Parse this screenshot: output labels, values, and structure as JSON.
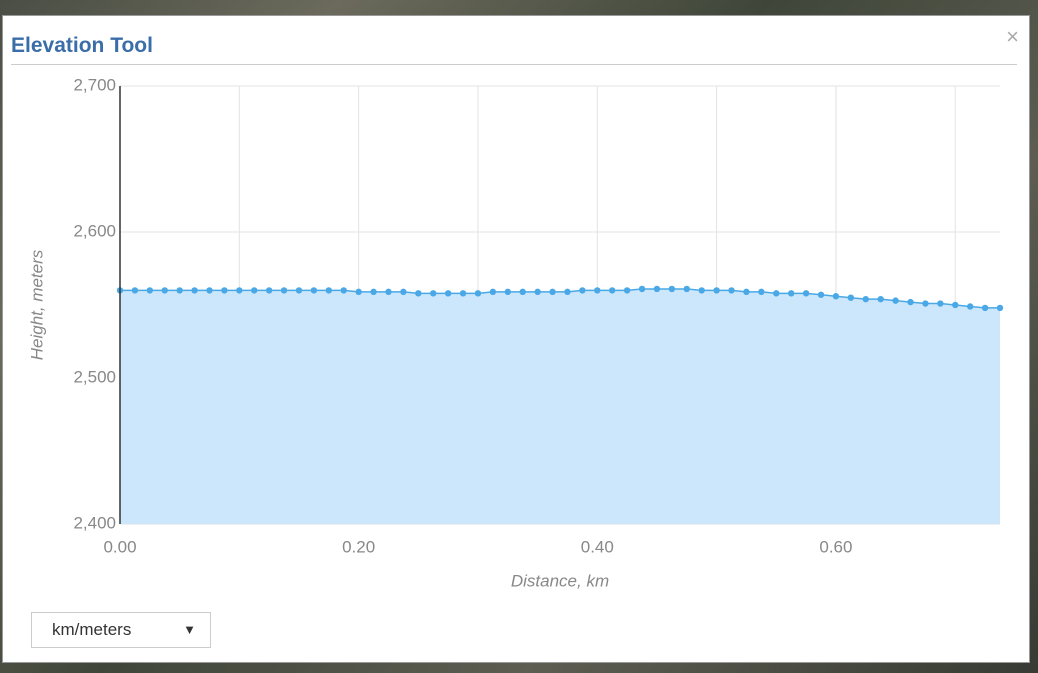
{
  "dialog": {
    "title": "Elevation Tool",
    "close": "×"
  },
  "dropdown": {
    "label": "km/meters",
    "arrow": "▼"
  },
  "chart_data": {
    "type": "area",
    "xlabel": "Distance, km",
    "ylabel": "Height, meters",
    "x": [
      0,
      0.0125,
      0.025,
      0.0375,
      0.05,
      0.0625,
      0.075,
      0.0875,
      0.1,
      0.1125,
      0.125,
      0.1375,
      0.15,
      0.1625,
      0.175,
      0.1875,
      0.2,
      0.2125,
      0.225,
      0.2375,
      0.25,
      0.2625,
      0.275,
      0.2875,
      0.3,
      0.3125,
      0.325,
      0.3375,
      0.35,
      0.3625,
      0.375,
      0.3875,
      0.4,
      0.4125,
      0.425,
      0.4375,
      0.45,
      0.4625,
      0.475,
      0.4875,
      0.5,
      0.5125,
      0.525,
      0.5375,
      0.55,
      0.5625,
      0.575,
      0.5875,
      0.6,
      0.6125,
      0.625,
      0.6375,
      0.65,
      0.6625,
      0.675,
      0.6875,
      0.7,
      0.7125,
      0.725,
      0.7375
    ],
    "values": [
      2560,
      2560,
      2560,
      2560,
      2560,
      2560,
      2560,
      2560,
      2560,
      2560,
      2560,
      2560,
      2560,
      2560,
      2560,
      2560,
      2559,
      2559,
      2559,
      2559,
      2558,
      2558,
      2558,
      2558,
      2558,
      2559,
      2559,
      2559,
      2559,
      2559,
      2559,
      2560,
      2560,
      2560,
      2560,
      2561,
      2561,
      2561,
      2561,
      2560,
      2560,
      2560,
      2559,
      2559,
      2558,
      2558,
      2558,
      2557,
      2556,
      2555,
      2554,
      2554,
      2553,
      2552,
      2551,
      2551,
      2550,
      2549,
      2548,
      2548
    ],
    "color": "#4aa8e6",
    "fill": "#cce7fb",
    "xlim": [
      0,
      0.7375
    ],
    "ylim": [
      2400,
      2700
    ],
    "xticks": [
      {
        "value": 0,
        "label": "0.00"
      },
      {
        "value": 0.2,
        "label": "0.20"
      },
      {
        "value": 0.4,
        "label": "0.40"
      },
      {
        "value": 0.6,
        "label": "0.60"
      }
    ],
    "x_minor_grid": [
      0.1,
      0.3,
      0.5,
      0.7
    ],
    "yticks": [
      {
        "value": 2400,
        "label": "2,400"
      },
      {
        "value": 2500,
        "label": "2,500"
      },
      {
        "value": 2600,
        "label": "2,600"
      },
      {
        "value": 2700,
        "label": "2,700"
      }
    ],
    "grid": true
  }
}
